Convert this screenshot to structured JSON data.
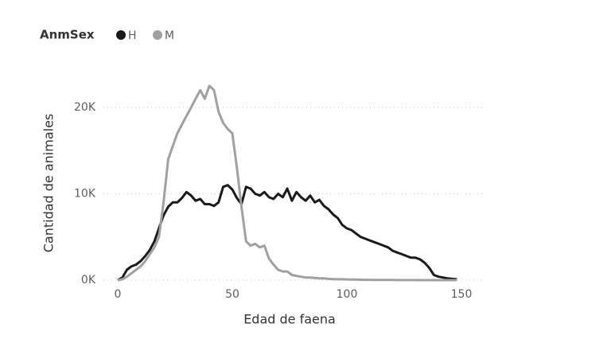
{
  "chart_data": {
    "type": "line",
    "legend_title": "AnmSex",
    "x_label": "Edad de faena",
    "y_label": "Cantidad de animales",
    "x": [
      0,
      2,
      4,
      6,
      8,
      10,
      12,
      14,
      16,
      18,
      20,
      22,
      24,
      26,
      28,
      30,
      32,
      34,
      36,
      38,
      40,
      42,
      44,
      46,
      48,
      50,
      52,
      54,
      56,
      58,
      60,
      62,
      64,
      66,
      68,
      70,
      72,
      74,
      76,
      78,
      80,
      82,
      84,
      86,
      88,
      90,
      92,
      94,
      96,
      98,
      100,
      102,
      104,
      106,
      108,
      110,
      112,
      114,
      116,
      118,
      120,
      122,
      124,
      126,
      128,
      130,
      132,
      134,
      136,
      138,
      140,
      142,
      144,
      146,
      148
    ],
    "series": [
      {
        "name": "H",
        "color": "#1a1a1a",
        "values": [
          0,
          300,
          1200,
          1600,
          1800,
          2200,
          2800,
          3500,
          4500,
          6000,
          7500,
          8500,
          9000,
          9000,
          9500,
          10200,
          9800,
          9200,
          9400,
          8800,
          8800,
          8600,
          9000,
          10800,
          11000,
          10500,
          9500,
          8800,
          10800,
          10600,
          10000,
          9800,
          10200,
          9600,
          9400,
          10000,
          9600,
          10600,
          9200,
          10200,
          9600,
          9200,
          9800,
          9000,
          9300,
          8600,
          8200,
          7600,
          7200,
          6400,
          6000,
          5800,
          5400,
          5000,
          4800,
          4600,
          4400,
          4200,
          4000,
          3800,
          3400,
          3200,
          3000,
          2800,
          2600,
          2600,
          2400,
          2000,
          1400,
          600,
          400,
          300,
          200,
          150,
          100
        ]
      },
      {
        "name": "M",
        "color": "#a0a0a0",
        "values": [
          0,
          100,
          400,
          800,
          1200,
          1600,
          2200,
          3000,
          3800,
          5000,
          9000,
          14000,
          15500,
          17000,
          18000,
          19000,
          20000,
          21000,
          22000,
          21000,
          22500,
          22000,
          19500,
          18200,
          17500,
          17000,
          13000,
          8500,
          4500,
          4000,
          4200,
          3800,
          4000,
          2500,
          1800,
          1200,
          1000,
          1000,
          600,
          500,
          400,
          300,
          300,
          250,
          200,
          200,
          150,
          120,
          100,
          100,
          80,
          70,
          60,
          50,
          40,
          40,
          30,
          30,
          20,
          20,
          20,
          10,
          10,
          10,
          10,
          10,
          0,
          0,
          0,
          0,
          0,
          0,
          0,
          0,
          0
        ]
      }
    ],
    "xlim": [
      0,
      150
    ],
    "xticks": [
      0,
      50,
      100,
      150
    ],
    "ylim": [
      0,
      23500
    ],
    "yticks": [
      {
        "value": 0,
        "label": "0K"
      },
      {
        "value": 10000,
        "label": "10K"
      },
      {
        "value": 20000,
        "label": "20K"
      }
    ],
    "grid": true
  }
}
